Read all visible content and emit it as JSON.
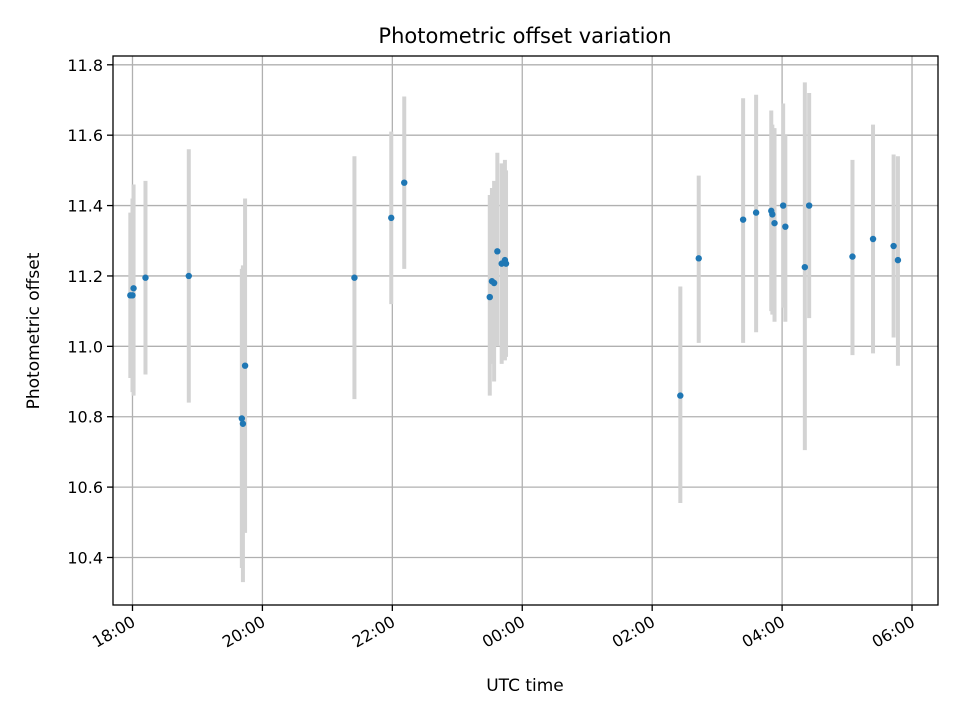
{
  "chart_data": {
    "type": "scatter",
    "title": "Photometric offset variation",
    "xlabel": "UTC time",
    "ylabel": "Photometric offset",
    "x_axis": {
      "kind": "time",
      "start": "17:42",
      "end": "06:24",
      "ticks": [
        "18:00",
        "20:00",
        "22:00",
        "00:00",
        "02:00",
        "04:00",
        "06:00"
      ]
    },
    "ylim": [
      10.265,
      11.825
    ],
    "y_ticks": [
      "10.4",
      "10.6",
      "10.8",
      "11.0",
      "11.2",
      "11.4",
      "11.6",
      "11.8"
    ],
    "grid": true,
    "colors": {
      "marker": "#1f77b4",
      "errorbar": "#d3d3d3",
      "grid": "#b0b0b0"
    },
    "points": [
      {
        "x": "17:58",
        "y": 11.145,
        "ylow": 10.91,
        "yhigh": 11.38
      },
      {
        "x": "18:00",
        "y": 11.145,
        "ylow": 10.87,
        "yhigh": 11.42
      },
      {
        "x": "18:01",
        "y": 11.165,
        "ylow": 10.86,
        "yhigh": 11.46
      },
      {
        "x": "18:12",
        "y": 11.195,
        "ylow": 10.92,
        "yhigh": 11.47
      },
      {
        "x": "18:52",
        "y": 11.2,
        "ylow": 10.84,
        "yhigh": 11.56
      },
      {
        "x": "19:41",
        "y": 10.795,
        "ylow": 10.37,
        "yhigh": 11.22
      },
      {
        "x": "19:42",
        "y": 10.78,
        "ylow": 10.33,
        "yhigh": 11.23
      },
      {
        "x": "19:44",
        "y": 10.945,
        "ylow": 10.47,
        "yhigh": 11.42
      },
      {
        "x": "21:25",
        "y": 11.195,
        "ylow": 10.85,
        "yhigh": 11.54
      },
      {
        "x": "21:59",
        "y": 11.365,
        "ylow": 11.12,
        "yhigh": 11.61
      },
      {
        "x": "22:11",
        "y": 11.465,
        "ylow": 11.22,
        "yhigh": 11.71
      },
      {
        "x": "23:30",
        "y": 11.14,
        "ylow": 10.86,
        "yhigh": 11.43
      },
      {
        "x": "23:32",
        "y": 11.185,
        "ylow": 10.95,
        "yhigh": 11.45
      },
      {
        "x": "23:34",
        "y": 11.18,
        "ylow": 10.9,
        "yhigh": 11.47
      },
      {
        "x": "23:37",
        "y": 11.27,
        "ylow": 11.0,
        "yhigh": 11.55
      },
      {
        "x": "23:41",
        "y": 11.235,
        "ylow": 10.95,
        "yhigh": 11.52
      },
      {
        "x": "23:44",
        "y": 11.245,
        "ylow": 10.96,
        "yhigh": 11.53
      },
      {
        "x": "23:45",
        "y": 11.235,
        "ylow": 10.97,
        "yhigh": 11.5
      },
      {
        "x": "02:26",
        "y": 10.86,
        "ylow": 10.555,
        "yhigh": 11.17
      },
      {
        "x": "02:43",
        "y": 11.25,
        "ylow": 11.01,
        "yhigh": 11.485
      },
      {
        "x": "03:24",
        "y": 11.36,
        "ylow": 11.01,
        "yhigh": 11.705
      },
      {
        "x": "03:36",
        "y": 11.38,
        "ylow": 11.04,
        "yhigh": 11.715
      },
      {
        "x": "03:50",
        "y": 11.385,
        "ylow": 11.1,
        "yhigh": 11.67
      },
      {
        "x": "03:51",
        "y": 11.375,
        "ylow": 11.09,
        "yhigh": 11.63
      },
      {
        "x": "03:53",
        "y": 11.35,
        "ylow": 11.07,
        "yhigh": 11.62
      },
      {
        "x": "04:01",
        "y": 11.4,
        "ylow": 11.11,
        "yhigh": 11.69
      },
      {
        "x": "04:03",
        "y": 11.34,
        "ylow": 11.07,
        "yhigh": 11.6
      },
      {
        "x": "04:21",
        "y": 11.225,
        "ylow": 10.705,
        "yhigh": 11.75
      },
      {
        "x": "04:25",
        "y": 11.4,
        "ylow": 11.08,
        "yhigh": 11.72
      },
      {
        "x": "05:05",
        "y": 11.255,
        "ylow": 10.975,
        "yhigh": 11.53
      },
      {
        "x": "05:24",
        "y": 11.305,
        "ylow": 10.98,
        "yhigh": 11.63
      },
      {
        "x": "05:43",
        "y": 11.285,
        "ylow": 11.025,
        "yhigh": 11.545
      },
      {
        "x": "05:47",
        "y": 11.245,
        "ylow": 10.945,
        "yhigh": 11.54
      }
    ]
  }
}
